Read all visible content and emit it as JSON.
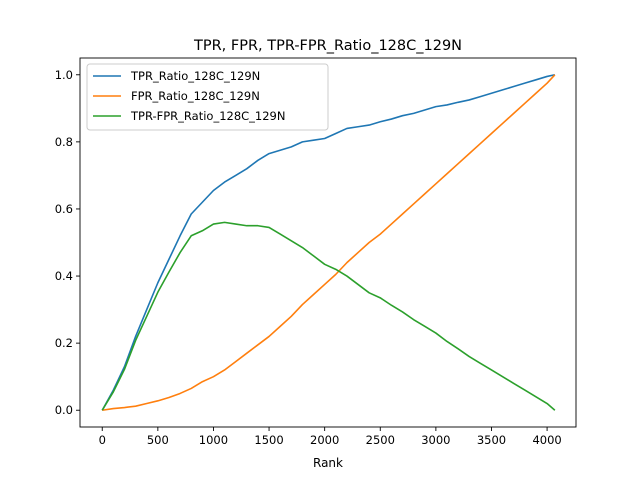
{
  "chart_data": {
    "type": "line",
    "title": "TPR, FPR, TPR-FPR_Ratio_128C_129N",
    "xlabel": "Rank",
    "ylabel": "",
    "xlim": [
      -200,
      4260
    ],
    "ylim": [
      -0.05,
      1.05
    ],
    "xticks": [
      0,
      500,
      1000,
      1500,
      2000,
      2500,
      3000,
      3500,
      4000
    ],
    "yticks": [
      0.0,
      0.2,
      0.4,
      0.6,
      0.8,
      1.0
    ],
    "xtick_labels": [
      "0",
      "500",
      "1000",
      "1500",
      "2000",
      "2500",
      "3000",
      "3500",
      "4000"
    ],
    "ytick_labels": [
      "0.0",
      "0.2",
      "0.4",
      "0.6",
      "0.8",
      "1.0"
    ],
    "grid": false,
    "legend_position": "top-left",
    "series": [
      {
        "name": "TPR_Ratio_128C_129N",
        "color": "#1f77b4",
        "points": [
          [
            0,
            0.0
          ],
          [
            100,
            0.06
          ],
          [
            200,
            0.13
          ],
          [
            300,
            0.22
          ],
          [
            400,
            0.3
          ],
          [
            500,
            0.38
          ],
          [
            600,
            0.45
          ],
          [
            700,
            0.52
          ],
          [
            800,
            0.585
          ],
          [
            900,
            0.62
          ],
          [
            1000,
            0.655
          ],
          [
            1100,
            0.68
          ],
          [
            1200,
            0.7
          ],
          [
            1300,
            0.72
          ],
          [
            1400,
            0.745
          ],
          [
            1500,
            0.765
          ],
          [
            1600,
            0.775
          ],
          [
            1700,
            0.785
          ],
          [
            1800,
            0.8
          ],
          [
            1900,
            0.805
          ],
          [
            2000,
            0.81
          ],
          [
            2100,
            0.825
          ],
          [
            2200,
            0.84
          ],
          [
            2300,
            0.845
          ],
          [
            2400,
            0.85
          ],
          [
            2500,
            0.86
          ],
          [
            2600,
            0.868
          ],
          [
            2700,
            0.878
          ],
          [
            2800,
            0.885
          ],
          [
            2900,
            0.895
          ],
          [
            3000,
            0.905
          ],
          [
            3100,
            0.91
          ],
          [
            3200,
            0.918
          ],
          [
            3300,
            0.925
          ],
          [
            3400,
            0.935
          ],
          [
            3500,
            0.945
          ],
          [
            3600,
            0.955
          ],
          [
            3700,
            0.965
          ],
          [
            3800,
            0.975
          ],
          [
            3900,
            0.985
          ],
          [
            4000,
            0.995
          ],
          [
            4070,
            1.0
          ]
        ]
      },
      {
        "name": "FPR_Ratio_128C_129N",
        "color": "#ff7f0e",
        "points": [
          [
            0,
            0.0
          ],
          [
            100,
            0.005
          ],
          [
            200,
            0.008
          ],
          [
            300,
            0.012
          ],
          [
            400,
            0.02
          ],
          [
            500,
            0.028
          ],
          [
            600,
            0.038
          ],
          [
            700,
            0.05
          ],
          [
            800,
            0.065
          ],
          [
            900,
            0.085
          ],
          [
            1000,
            0.1
          ],
          [
            1100,
            0.12
          ],
          [
            1200,
            0.145
          ],
          [
            1300,
            0.17
          ],
          [
            1400,
            0.195
          ],
          [
            1500,
            0.22
          ],
          [
            1600,
            0.25
          ],
          [
            1700,
            0.28
          ],
          [
            1800,
            0.315
          ],
          [
            1900,
            0.345
          ],
          [
            2000,
            0.375
          ],
          [
            2100,
            0.405
          ],
          [
            2200,
            0.44
          ],
          [
            2300,
            0.47
          ],
          [
            2400,
            0.5
          ],
          [
            2500,
            0.525
          ],
          [
            2600,
            0.555
          ],
          [
            2700,
            0.585
          ],
          [
            2800,
            0.615
          ],
          [
            2900,
            0.645
          ],
          [
            3000,
            0.675
          ],
          [
            3100,
            0.705
          ],
          [
            3200,
            0.735
          ],
          [
            3300,
            0.765
          ],
          [
            3400,
            0.795
          ],
          [
            3500,
            0.825
          ],
          [
            3600,
            0.855
          ],
          [
            3700,
            0.885
          ],
          [
            3800,
            0.915
          ],
          [
            3900,
            0.945
          ],
          [
            4000,
            0.975
          ],
          [
            4070,
            1.0
          ]
        ]
      },
      {
        "name": "TPR-FPR_Ratio_128C_129N",
        "color": "#2ca02c",
        "points": [
          [
            0,
            0.0
          ],
          [
            100,
            0.055
          ],
          [
            200,
            0.122
          ],
          [
            300,
            0.208
          ],
          [
            400,
            0.28
          ],
          [
            500,
            0.352
          ],
          [
            600,
            0.412
          ],
          [
            700,
            0.47
          ],
          [
            800,
            0.52
          ],
          [
            900,
            0.535
          ],
          [
            1000,
            0.555
          ],
          [
            1100,
            0.56
          ],
          [
            1200,
            0.555
          ],
          [
            1300,
            0.55
          ],
          [
            1400,
            0.55
          ],
          [
            1500,
            0.545
          ],
          [
            1600,
            0.525
          ],
          [
            1700,
            0.505
          ],
          [
            1800,
            0.485
          ],
          [
            1900,
            0.46
          ],
          [
            2000,
            0.435
          ],
          [
            2100,
            0.42
          ],
          [
            2200,
            0.4
          ],
          [
            2300,
            0.375
          ],
          [
            2400,
            0.35
          ],
          [
            2500,
            0.335
          ],
          [
            2600,
            0.313
          ],
          [
            2700,
            0.293
          ],
          [
            2800,
            0.27
          ],
          [
            2900,
            0.25
          ],
          [
            3000,
            0.23
          ],
          [
            3100,
            0.205
          ],
          [
            3200,
            0.183
          ],
          [
            3300,
            0.16
          ],
          [
            3400,
            0.14
          ],
          [
            3500,
            0.12
          ],
          [
            3600,
            0.1
          ],
          [
            3700,
            0.08
          ],
          [
            3800,
            0.06
          ],
          [
            3900,
            0.04
          ],
          [
            4000,
            0.02
          ],
          [
            4070,
            0.0
          ]
        ]
      }
    ]
  }
}
